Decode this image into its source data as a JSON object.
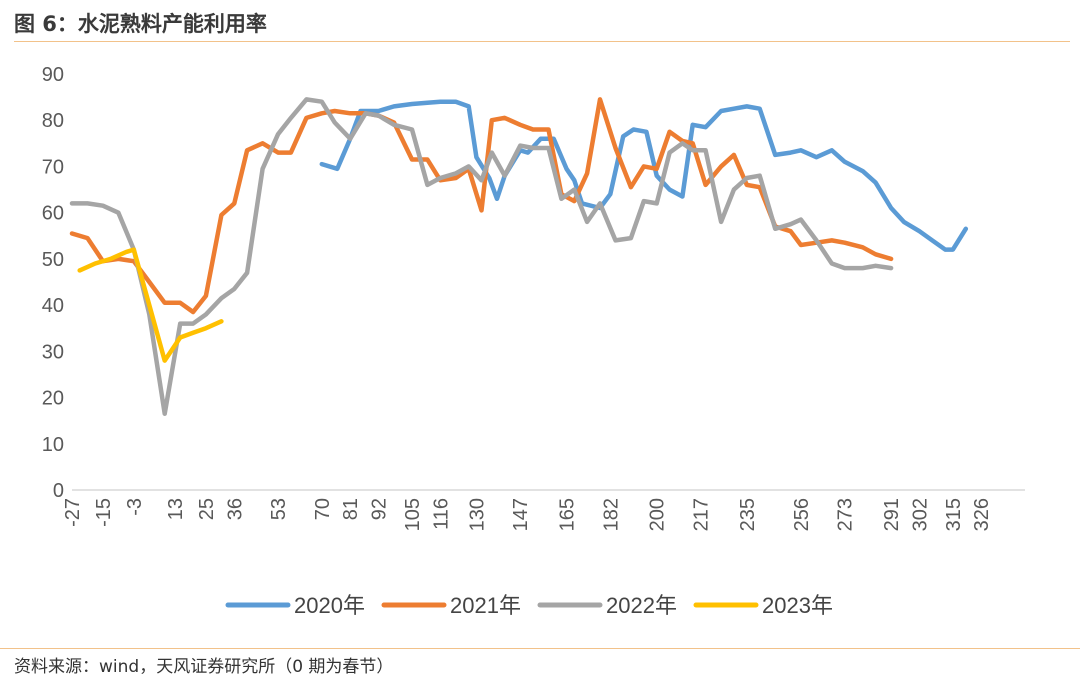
{
  "chart_data": {
    "type": "line",
    "title": "图 6：水泥熟料产能利用率",
    "source": "资料来源：wind，天风证券研究所（0 期为春节）",
    "xlabel": "",
    "ylabel": "",
    "ylim": [
      0,
      90
    ],
    "yticks": [
      0,
      10,
      20,
      30,
      40,
      50,
      60,
      70,
      80,
      90
    ],
    "xlim": [
      -27,
      343
    ],
    "xticks": [
      -27,
      -15,
      -3,
      13,
      25,
      36,
      53,
      70,
      81,
      92,
      105,
      116,
      130,
      147,
      165,
      182,
      200,
      217,
      235,
      256,
      273,
      291,
      302,
      315,
      326
    ],
    "legend_position": "bottom",
    "series": [
      {
        "name": "2020年",
        "color": "#5b9bd5",
        "points": [
          [
            70,
            70.5
          ],
          [
            76,
            69.5
          ],
          [
            81,
            76
          ],
          [
            85,
            82
          ],
          [
            92,
            82
          ],
          [
            98,
            83
          ],
          [
            105,
            83.5
          ],
          [
            111,
            83.8
          ],
          [
            116,
            84
          ],
          [
            122,
            84
          ],
          [
            127,
            83
          ],
          [
            130,
            72
          ],
          [
            135,
            67.5
          ],
          [
            138,
            63
          ],
          [
            141,
            68
          ],
          [
            147,
            73.5
          ],
          [
            150,
            73
          ],
          [
            155,
            76
          ],
          [
            160,
            76
          ],
          [
            165,
            69.5
          ],
          [
            168,
            67
          ],
          [
            171,
            62
          ],
          [
            178,
            61
          ],
          [
            182,
            64
          ],
          [
            187,
            76.5
          ],
          [
            191,
            78
          ],
          [
            196,
            77.5
          ],
          [
            200,
            68
          ],
          [
            205,
            65
          ],
          [
            210,
            63.5
          ],
          [
            214,
            79
          ],
          [
            219,
            78.5
          ],
          [
            225,
            82
          ],
          [
            230,
            82.5
          ],
          [
            235,
            83
          ],
          [
            240,
            82.5
          ],
          [
            246,
            72.5
          ],
          [
            252,
            73
          ],
          [
            256,
            73.5
          ],
          [
            262,
            72
          ],
          [
            268,
            73.5
          ],
          [
            273,
            71
          ],
          [
            280,
            69
          ],
          [
            285,
            66.5
          ],
          [
            291,
            61
          ],
          [
            296,
            58
          ],
          [
            302,
            56
          ],
          [
            307,
            54
          ],
          [
            312,
            52
          ],
          [
            315,
            52
          ],
          [
            320,
            56.5
          ]
        ]
      },
      {
        "name": "2021年",
        "color": "#ed7d31",
        "points": [
          [
            -27,
            55.5
          ],
          [
            -21,
            54.5
          ],
          [
            -15,
            49.5
          ],
          [
            -9,
            50
          ],
          [
            -3,
            49.5
          ],
          [
            3,
            45
          ],
          [
            9,
            40.5
          ],
          [
            15,
            40.5
          ],
          [
            20,
            38.5
          ],
          [
            25,
            42
          ],
          [
            31,
            59.5
          ],
          [
            36,
            62
          ],
          [
            41,
            73.5
          ],
          [
            47,
            75
          ],
          [
            53,
            73
          ],
          [
            58,
            73
          ],
          [
            64,
            80.5
          ],
          [
            70,
            81.5
          ],
          [
            75,
            82
          ],
          [
            81,
            81.5
          ],
          [
            87,
            81.5
          ],
          [
            92,
            81
          ],
          [
            98,
            79.5
          ],
          [
            105,
            71.5
          ],
          [
            111,
            71.5
          ],
          [
            116,
            67
          ],
          [
            122,
            67.5
          ],
          [
            127,
            69.5
          ],
          [
            132,
            60.5
          ],
          [
            136,
            80
          ],
          [
            141,
            80.5
          ],
          [
            147,
            79
          ],
          [
            152,
            78
          ],
          [
            158,
            78
          ],
          [
            163,
            64
          ],
          [
            168,
            62.5
          ],
          [
            173,
            68.5
          ],
          [
            178,
            84.5
          ],
          [
            184,
            74
          ],
          [
            190,
            65.5
          ],
          [
            195,
            70
          ],
          [
            200,
            69.5
          ],
          [
            205,
            77.5
          ],
          [
            210,
            75.5
          ],
          [
            214,
            75
          ],
          [
            219,
            66
          ],
          [
            225,
            70
          ],
          [
            230,
            72.5
          ],
          [
            235,
            66
          ],
          [
            240,
            65.5
          ],
          [
            246,
            57
          ],
          [
            252,
            56
          ],
          [
            256,
            53
          ],
          [
            262,
            53.5
          ],
          [
            268,
            54
          ],
          [
            273,
            53.5
          ],
          [
            280,
            52.5
          ],
          [
            285,
            51
          ],
          [
            291,
            50
          ]
        ]
      },
      {
        "name": "2022年",
        "color": "#a5a5a5",
        "points": [
          [
            -27,
            62
          ],
          [
            -21,
            62
          ],
          [
            -15,
            61.5
          ],
          [
            -9,
            60
          ],
          [
            -3,
            52
          ],
          [
            3,
            38
          ],
          [
            9,
            16.5
          ],
          [
            15,
            36
          ],
          [
            20,
            36
          ],
          [
            25,
            38
          ],
          [
            31,
            41.5
          ],
          [
            36,
            43.5
          ],
          [
            41,
            47
          ],
          [
            47,
            69.5
          ],
          [
            53,
            77
          ],
          [
            58,
            80.5
          ],
          [
            64,
            84.5
          ],
          [
            70,
            84
          ],
          [
            75,
            79.5
          ],
          [
            81,
            76
          ],
          [
            87,
            81.5
          ],
          [
            92,
            81
          ],
          [
            98,
            79
          ],
          [
            105,
            78
          ],
          [
            111,
            66
          ],
          [
            116,
            67.5
          ],
          [
            122,
            68.5
          ],
          [
            127,
            70
          ],
          [
            132,
            67
          ],
          [
            136,
            73
          ],
          [
            141,
            68
          ],
          [
            147,
            74.5
          ],
          [
            152,
            74
          ],
          [
            158,
            74
          ],
          [
            163,
            63
          ],
          [
            168,
            65
          ],
          [
            173,
            58
          ],
          [
            178,
            62
          ],
          [
            184,
            54
          ],
          [
            190,
            54.5
          ],
          [
            195,
            62.5
          ],
          [
            200,
            62
          ],
          [
            205,
            73
          ],
          [
            210,
            75
          ],
          [
            214,
            73.5
          ],
          [
            219,
            73.5
          ],
          [
            225,
            58
          ],
          [
            230,
            65
          ],
          [
            235,
            67.5
          ],
          [
            240,
            68
          ],
          [
            246,
            56.5
          ],
          [
            252,
            57.5
          ],
          [
            256,
            58.5
          ],
          [
            262,
            54
          ],
          [
            268,
            49
          ],
          [
            273,
            48
          ],
          [
            280,
            48
          ],
          [
            285,
            48.5
          ],
          [
            291,
            48
          ]
        ]
      },
      {
        "name": "2023年",
        "color": "#ffc000",
        "points": [
          [
            -24,
            47.5
          ],
          [
            -18,
            49
          ],
          [
            -12,
            50
          ],
          [
            -6,
            51.5
          ],
          [
            -3,
            52
          ],
          [
            3,
            40
          ],
          [
            9,
            28
          ],
          [
            15,
            33
          ],
          [
            20,
            34
          ],
          [
            25,
            35
          ],
          [
            31,
            36.5
          ]
        ]
      }
    ]
  }
}
